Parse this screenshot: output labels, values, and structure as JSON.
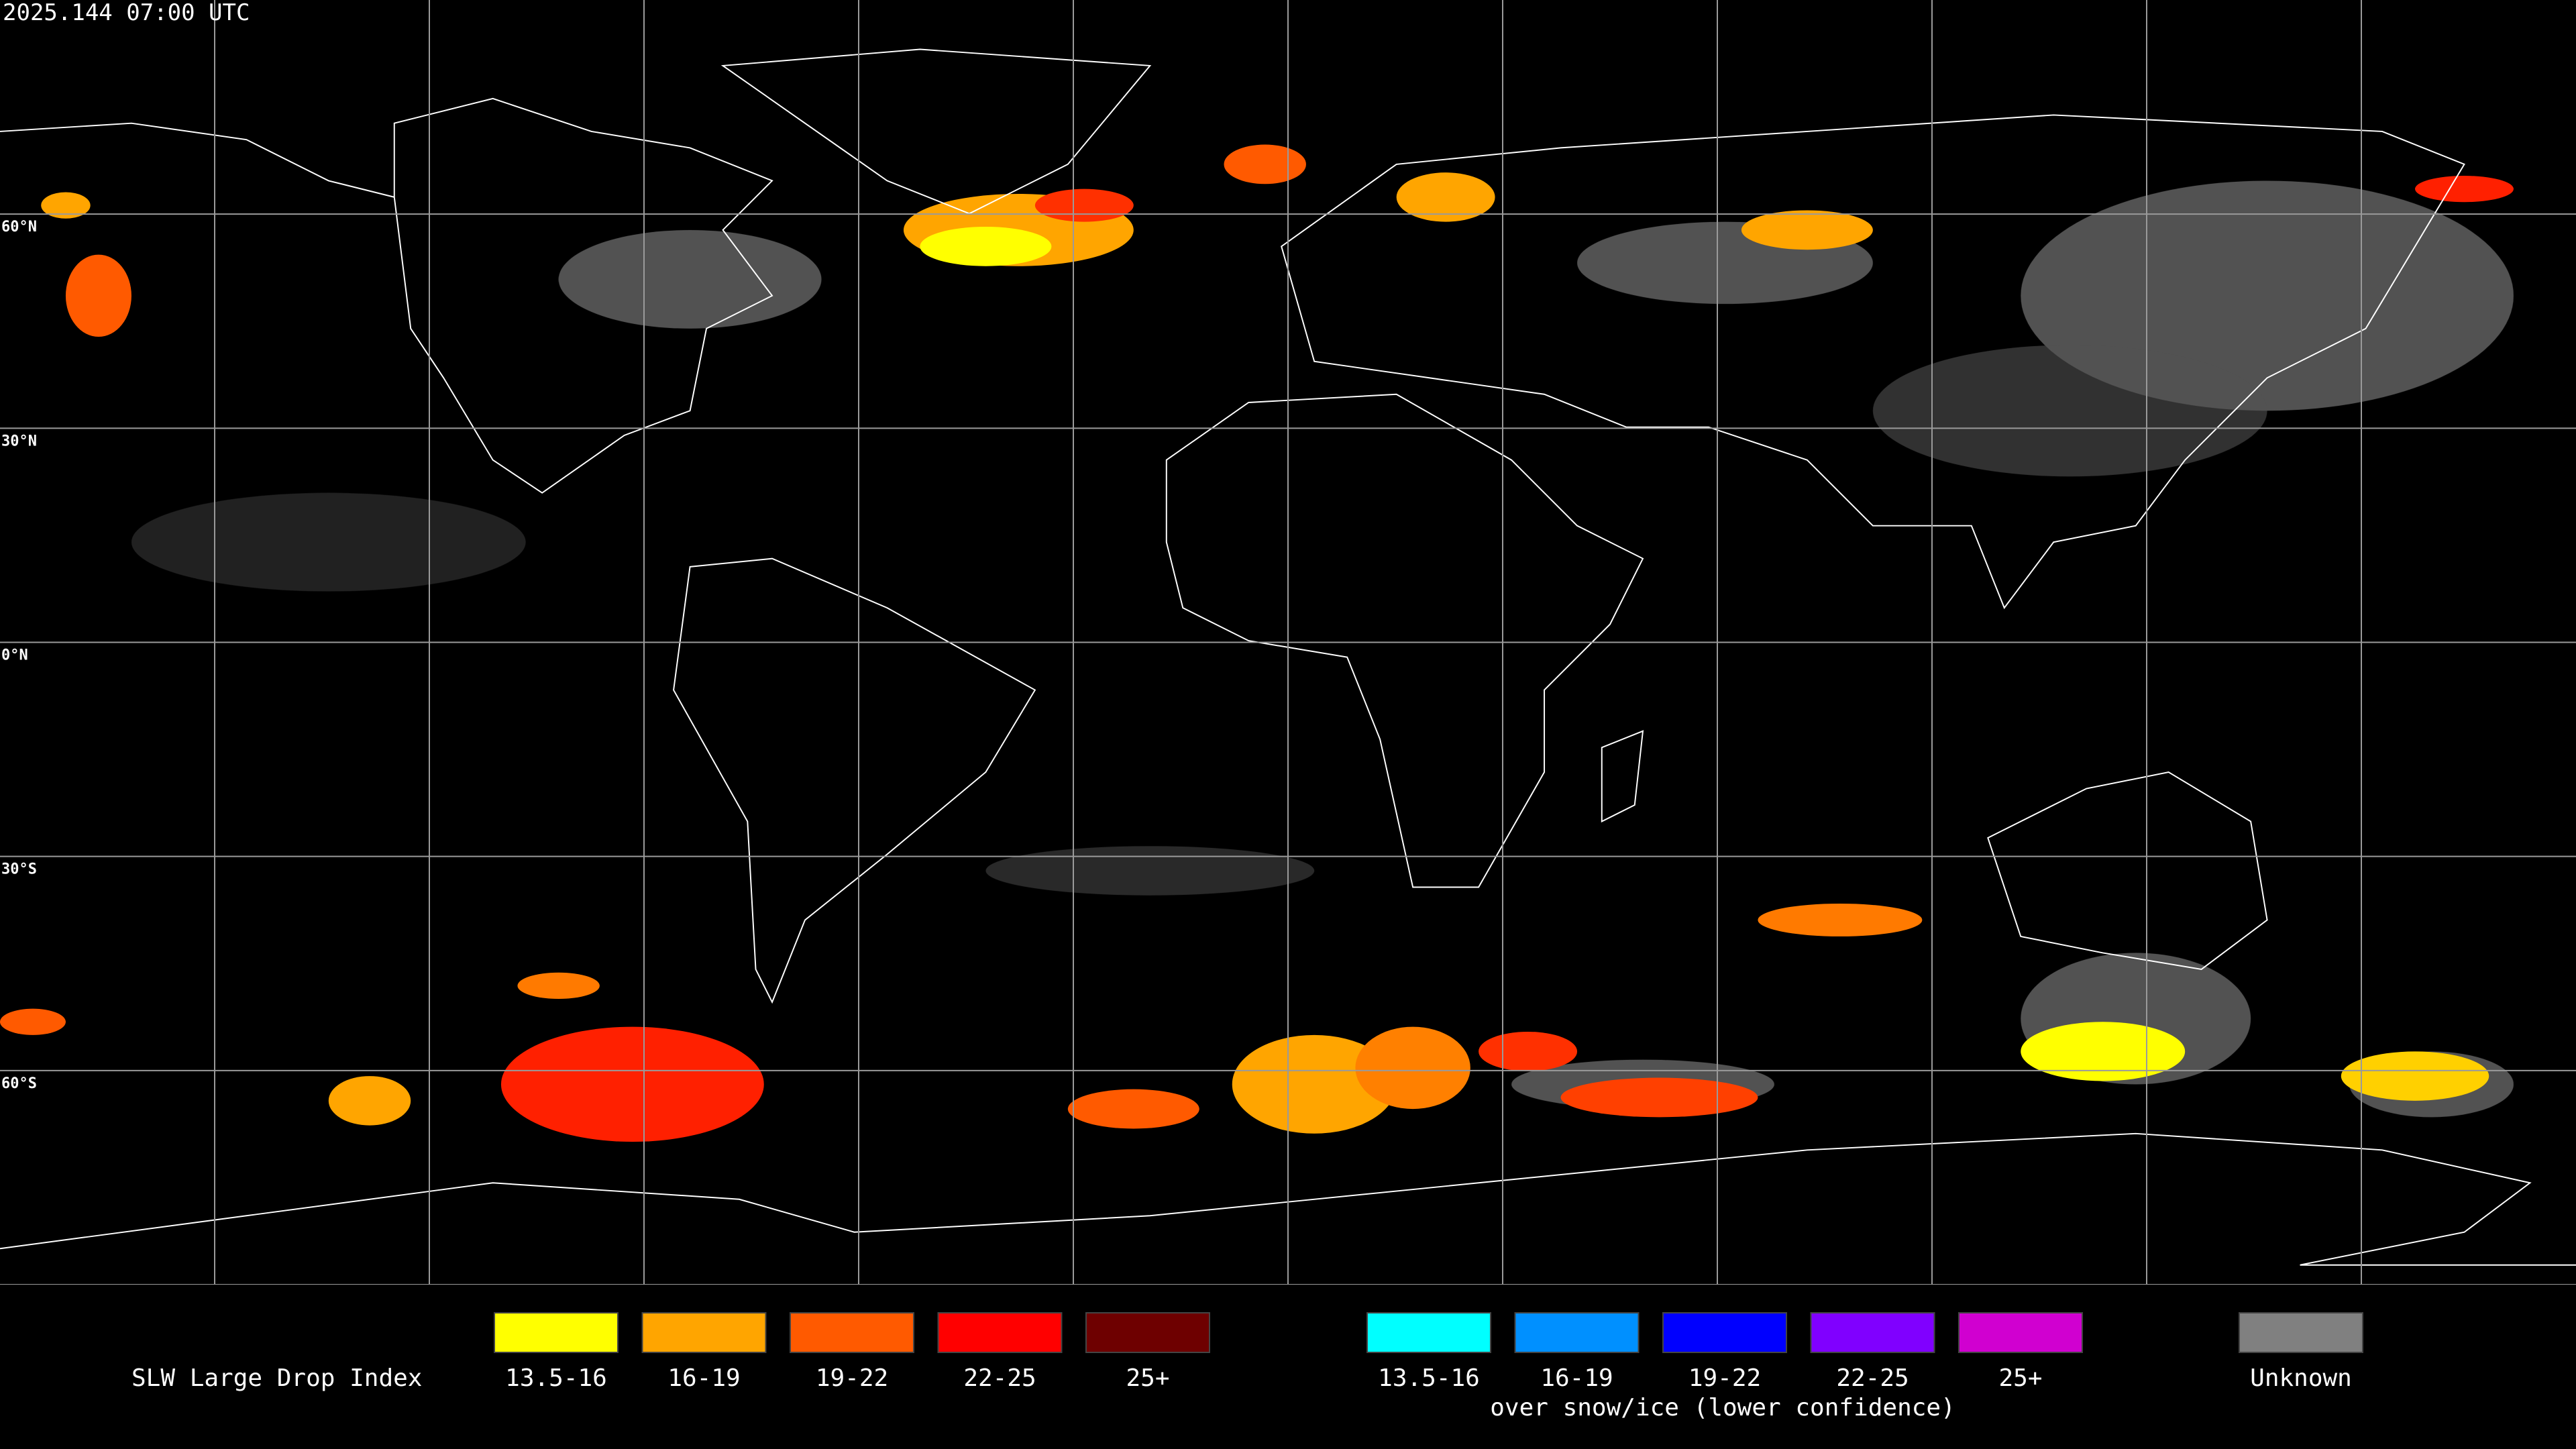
{
  "header": {
    "timestamp": "2025.144 07:00 UTC"
  },
  "map": {
    "latitude_labels": [
      "60°N",
      "30°N",
      "0°N",
      "30°S",
      "60°S"
    ]
  },
  "legend": {
    "title": "SLW Large Drop Index",
    "main": [
      {
        "label": "13.5-16",
        "color": "#ffff00"
      },
      {
        "label": "16-19",
        "color": "#ffa500"
      },
      {
        "label": "19-22",
        "color": "#ff5a00"
      },
      {
        "label": "22-25",
        "color": "#ff0000"
      },
      {
        "label": "25+",
        "color": "#6e0000"
      }
    ],
    "snow_ice": [
      {
        "label": "13.5-16",
        "color": "#00ffff"
      },
      {
        "label": "16-19",
        "color": "#0090ff"
      },
      {
        "label": "19-22",
        "color": "#0000ff"
      },
      {
        "label": "22-25",
        "color": "#8000ff"
      },
      {
        "label": "25+",
        "color": "#d000d0"
      }
    ],
    "snow_ice_caption": "over snow/ice (lower confidence)",
    "unknown": {
      "label": "Unknown",
      "color": "#808080"
    }
  }
}
